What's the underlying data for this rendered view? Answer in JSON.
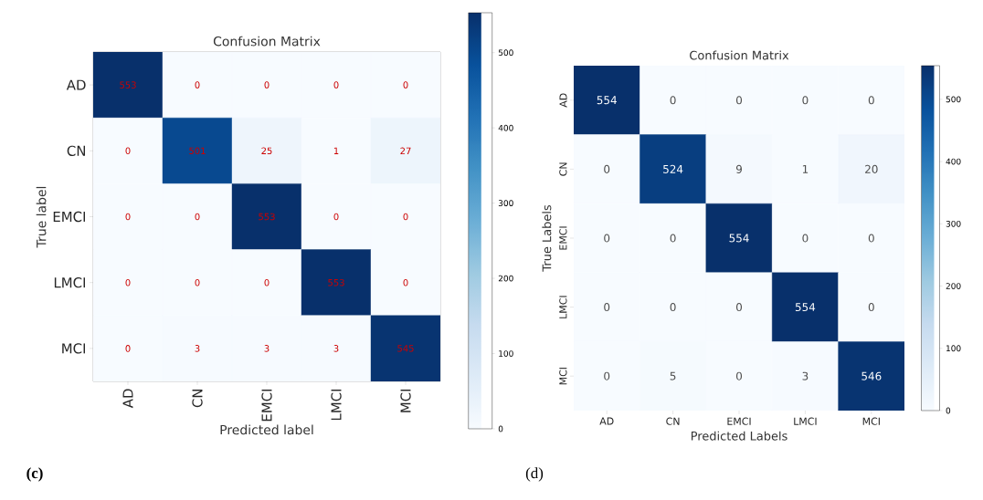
{
  "chart_data": [
    {
      "type": "heatmap",
      "title": "Confusion Matrix",
      "xlabel": "Predicted label",
      "ylabel": "True label",
      "categories": [
        "AD",
        "CN",
        "EMCI",
        "LMCI",
        "MCI"
      ],
      "y_categories": [
        "AD",
        "CN",
        "EMCI",
        "LMCI",
        "MCI"
      ],
      "cells": [
        [
          553,
          0,
          0,
          0,
          0
        ],
        [
          0,
          501,
          25,
          1,
          27
        ],
        [
          0,
          0,
          553,
          0,
          0
        ],
        [
          0,
          0,
          0,
          553,
          0
        ],
        [
          0,
          3,
          3,
          3,
          545
        ]
      ],
      "clim": [
        0,
        553
      ],
      "cticks": [
        0,
        100,
        200,
        300,
        400,
        500
      ],
      "data_labels": true,
      "annotations": [
        "(c)"
      ]
    },
    {
      "type": "heatmap",
      "title": "Confusion Matrix",
      "xlabel": "Predicted Labels",
      "ylabel": "True Labels",
      "categories": [
        "AD",
        "CN",
        "EMCI",
        "LMCI",
        "MCI"
      ],
      "y_categories": [
        "AD",
        "CN",
        "EMCI",
        "LMCI",
        "MCI"
      ],
      "cells": [
        [
          554,
          0,
          0,
          0,
          0
        ],
        [
          0,
          524,
          9,
          1,
          20
        ],
        [
          0,
          0,
          554,
          0,
          0
        ],
        [
          0,
          0,
          0,
          554,
          0
        ],
        [
          0,
          5,
          0,
          3,
          546
        ]
      ],
      "clim": [
        0,
        554
      ],
      "cticks": [
        0,
        100,
        200,
        300,
        400,
        500
      ],
      "data_labels": true,
      "annotations": [
        "(d)"
      ]
    }
  ]
}
